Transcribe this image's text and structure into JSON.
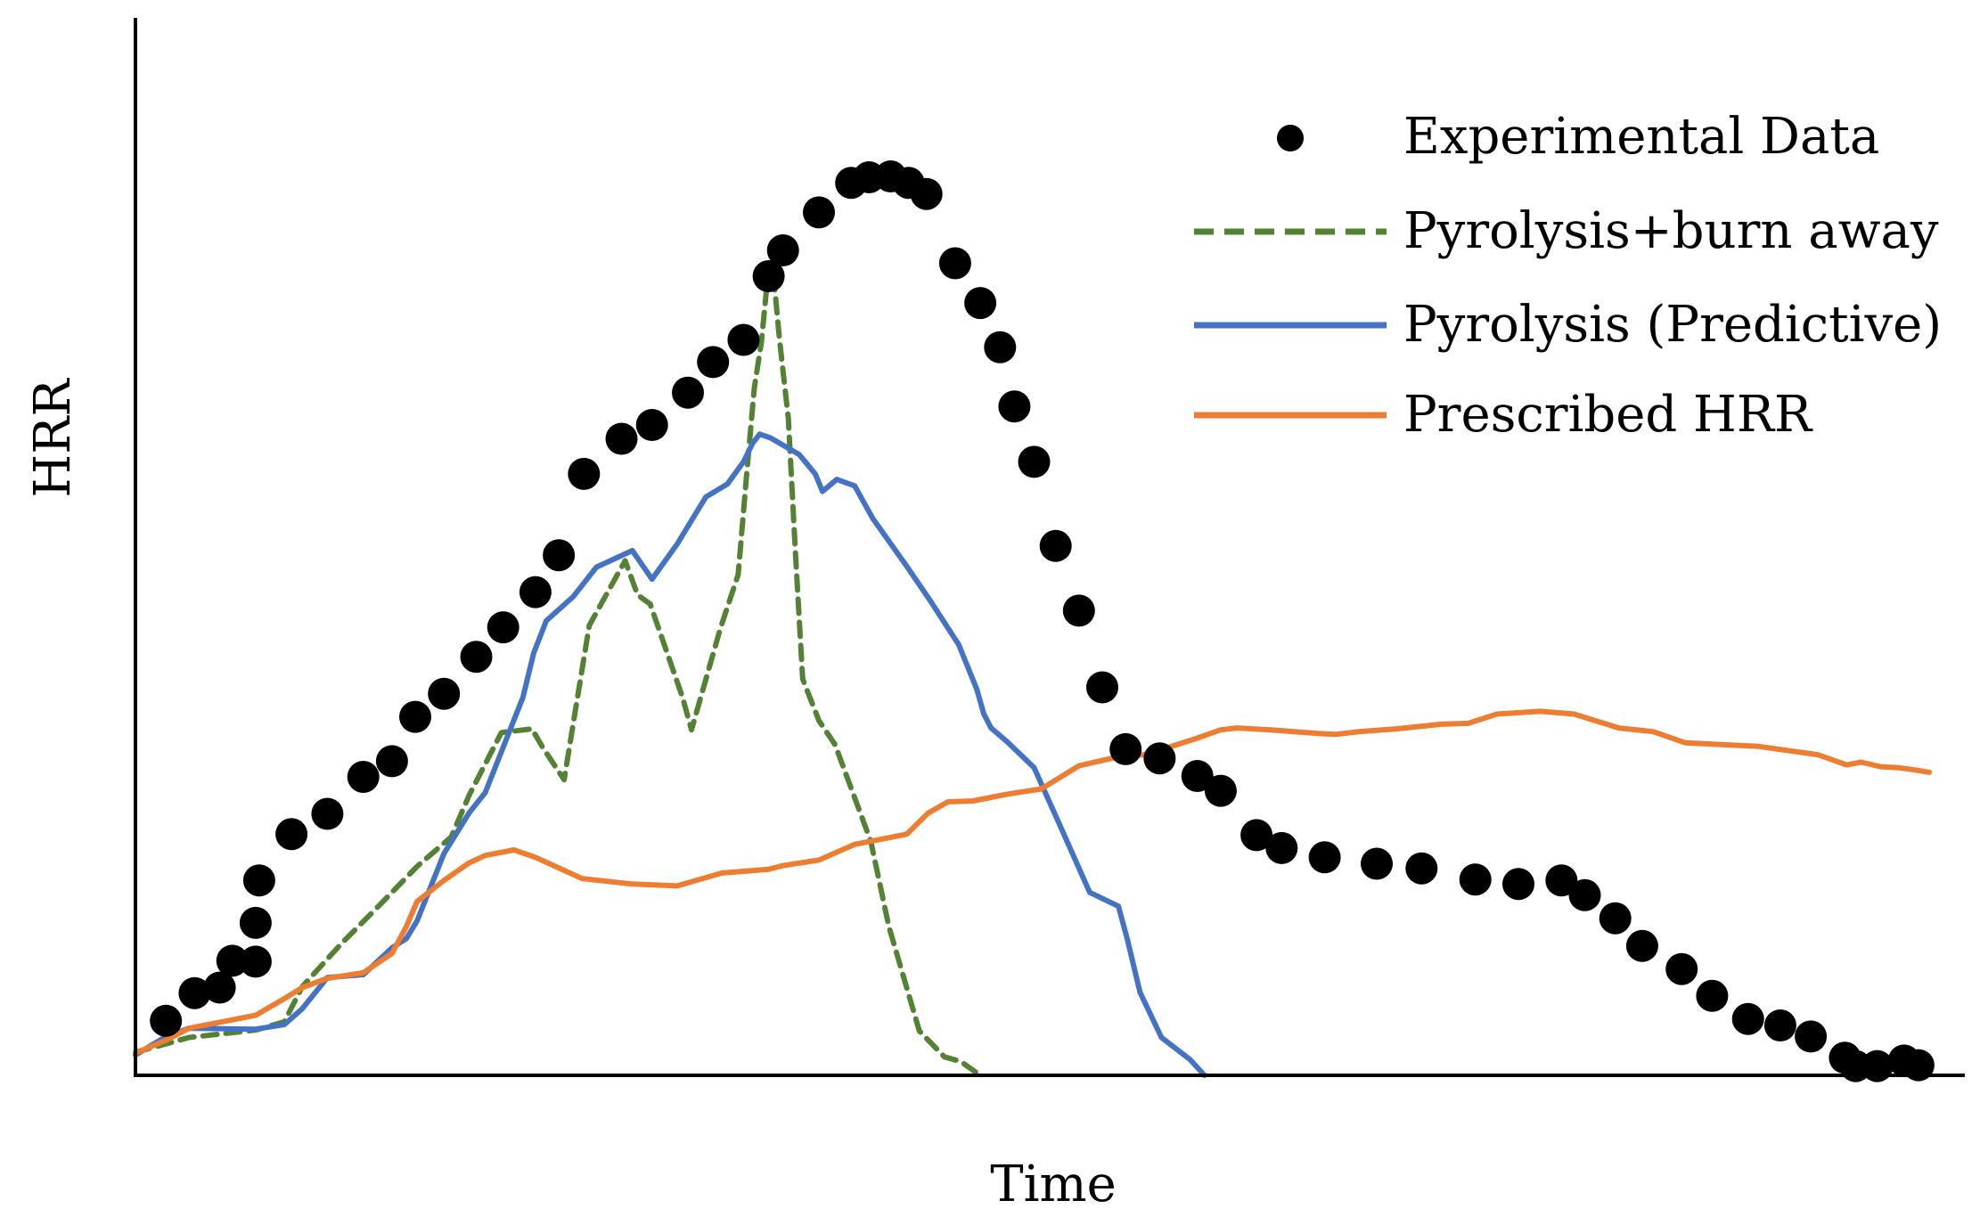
{
  "chart_data": {
    "type": "line",
    "title": "",
    "xlabel": "Time",
    "ylabel": "HRR",
    "xlim": [
      0,
      100
    ],
    "ylim": [
      0,
      100
    ],
    "ticks": "none",
    "grid": false,
    "legend_position": "top-right",
    "series": [
      {
        "name": "Experimental Data",
        "style": "markers",
        "color": "#000000",
        "x": [
          1.7,
          3.3,
          4.7,
          5.4,
          6.7,
          6.7,
          6.9,
          8.7,
          10.7,
          12.7,
          14.3,
          15.6,
          17.2,
          19.0,
          20.5,
          22.3,
          23.6,
          25.0,
          27.1,
          28.8,
          30.8,
          32.2,
          33.9,
          35.3,
          36.1,
          38.1,
          39.9,
          40.9,
          42.1,
          43.1,
          44.1,
          45.7,
          47.1,
          48.2,
          49.0,
          50.1,
          51.3,
          52.6,
          53.9,
          55.2,
          57.1,
          59.2,
          60.5,
          62.5,
          63.9,
          66.3,
          69.2,
          71.7,
          74.7,
          77.1,
          79.5,
          80.8,
          82.5,
          84.0,
          86.2,
          87.9,
          89.9,
          91.7,
          93.4,
          95.3,
          95.9,
          97.1,
          98.6,
          99.4
        ],
        "y": [
          5.9,
          8.9,
          9.5,
          12.4,
          12.3,
          16.5,
          21.1,
          26.1,
          28.3,
          32.3,
          34.0,
          38.8,
          41.3,
          45.3,
          48.5,
          52.3,
          56.3,
          65.1,
          68.9,
          70.4,
          73.9,
          77.2,
          79.6,
          86.5,
          89.3,
          93.4,
          96.6,
          97.2,
          97.3,
          96.6,
          95.4,
          87.9,
          83.6,
          78.8,
          72.4,
          66.4,
          57.3,
          50.3,
          42.0,
          35.3,
          34.3,
          32.4,
          30.8,
          26.0,
          24.6,
          23.6,
          22.9,
          22.4,
          21.2,
          20.7,
          21.1,
          19.5,
          17.0,
          14.0,
          11.5,
          8.6,
          6.1,
          5.4,
          4.2,
          1.9,
          1.0,
          1.0,
          1.6,
          1.1
        ],
        "values": [
          5.9,
          8.9,
          9.5,
          12.4,
          12.3,
          16.5,
          21.1,
          26.1,
          28.3,
          32.3,
          34.0,
          38.8,
          41.3,
          45.3,
          48.5,
          52.3,
          56.3,
          65.1,
          68.9,
          70.4,
          73.9,
          77.2,
          79.6,
          86.5,
          89.3,
          93.4,
          96.6,
          97.2,
          97.3,
          96.6,
          95.4,
          87.9,
          83.6,
          78.8,
          72.4,
          66.4,
          57.3,
          50.3,
          42.0,
          35.3,
          34.3,
          32.4,
          30.8,
          26.0,
          24.6,
          23.6,
          22.9,
          22.4,
          21.2,
          20.7,
          21.1,
          19.5,
          17.0,
          14.0,
          11.5,
          8.6,
          6.1,
          5.4,
          4.2,
          1.9,
          1.0,
          1.0,
          1.6,
          1.1
        ]
      },
      {
        "name": "Pyrolysis+burn away",
        "style": "dashed-line",
        "color": "#548235",
        "x": [
          0,
          3.0,
          6.7,
          8.3,
          9.3,
          11.5,
          13.4,
          15.7,
          17.6,
          18.6,
          20.4,
          22.1,
          22.7,
          23.9,
          24.5,
          25.3,
          27.3,
          28.0,
          28.7,
          30.5,
          31.0,
          32.6,
          33.6,
          34.1,
          34.5,
          34.9,
          35.2,
          35.6,
          35.9,
          36.4,
          36.8,
          37.2,
          38.1,
          39.0,
          41.0,
          42.0,
          43.7,
          45.1,
          46.0,
          47.1
        ],
        "y": [
          2.5,
          4.1,
          4.9,
          5.8,
          9.6,
          14.3,
          18.0,
          22.6,
          25.8,
          30.3,
          37.1,
          37.5,
          35.5,
          32.0,
          39.2,
          48.7,
          55.7,
          52.0,
          51.0,
          40.9,
          37.4,
          48.3,
          54.2,
          65.6,
          74.4,
          79.4,
          85.5,
          86.1,
          79.7,
          71.1,
          56.3,
          42.9,
          38.4,
          35.8,
          25.3,
          16.1,
          4.8,
          2.0,
          1.5,
          0.0
        ]
      },
      {
        "name": "Pyrolysis (Predictive)",
        "style": "line",
        "color": "#4472C4",
        "x": [
          0,
          1.7,
          3.0,
          6.7,
          8.3,
          9.3,
          10.7,
          12.7,
          14.3,
          15.1,
          15.7,
          17.2,
          18.6,
          19.5,
          21.6,
          22.2,
          22.9,
          24.4,
          25.7,
          27.7,
          28.8,
          30.2,
          31.8,
          33.0,
          33.9,
          34.4,
          34.8,
          35.4,
          37.0,
          37.9,
          38.3,
          39.1,
          40.1,
          41.1,
          43.0,
          44.3,
          45.9,
          46.9,
          47.3,
          47.7,
          48.6,
          50.1,
          51.6,
          53.2,
          54.8,
          55.3,
          56.0,
          57.2,
          58.8,
          59.6
        ],
        "y": [
          2.2,
          4.2,
          5.1,
          5.0,
          5.5,
          7.2,
          10.6,
          10.9,
          13.8,
          14.8,
          16.7,
          24.0,
          28.4,
          30.6,
          40.9,
          45.7,
          49.2,
          51.8,
          55.0,
          56.8,
          53.7,
          57.5,
          62.6,
          64.0,
          66.4,
          68.4,
          69.4,
          69.0,
          67.2,
          65.1,
          63.2,
          64.5,
          63.8,
          60.3,
          55.1,
          51.4,
          46.6,
          41.8,
          39.1,
          37.6,
          36.1,
          33.3,
          26.8,
          19.8,
          18.3,
          14.7,
          9.0,
          4.1,
          1.7,
          0.0
        ]
      },
      {
        "name": "Prescribed HRR",
        "style": "line",
        "color": "#ED7D31",
        "x": [
          0,
          1.7,
          3.0,
          6.7,
          8.3,
          9.3,
          10.7,
          12.7,
          14.3,
          15.1,
          15.7,
          17.2,
          18.6,
          19.5,
          21.1,
          22.3,
          24.9,
          27.7,
          30.2,
          32.7,
          35.3,
          36.1,
          38.1,
          40.1,
          43.0,
          44.2,
          45.3,
          46.7,
          48.5,
          50.5,
          52.6,
          54.6,
          56.2,
          57.1,
          59.2,
          60.5,
          61.4,
          63.3,
          65.9,
          66.9,
          68.2,
          70.3,
          72.8,
          74.3,
          75.9,
          78.3,
          80.2,
          82.7,
          84.6,
          86.4,
          88.4,
          90.5,
          93.8,
          95.4,
          96.2,
          97.3,
          98.3,
          99.4,
          100.0
        ],
        "y": [
          2.4,
          3.8,
          5.1,
          6.5,
          8.3,
          9.5,
          10.5,
          11.1,
          13.2,
          16.1,
          18.8,
          21.1,
          23.0,
          23.8,
          24.4,
          23.6,
          21.3,
          20.7,
          20.5,
          21.9,
          22.3,
          22.7,
          23.3,
          25.0,
          26.1,
          28.4,
          29.6,
          29.7,
          30.4,
          31.0,
          33.5,
          34.4,
          34.7,
          35.2,
          36.5,
          37.4,
          37.6,
          37.4,
          37.0,
          36.9,
          37.2,
          37.5,
          38.0,
          38.1,
          39.1,
          39.4,
          39.1,
          37.6,
          37.2,
          36.0,
          35.8,
          35.6,
          34.7,
          33.6,
          33.9,
          33.4,
          33.3,
          33.0,
          32.8
        ]
      }
    ],
    "legend": [
      {
        "label": "Experimental Data",
        "marker": "dot",
        "color": "#000000"
      },
      {
        "label": "Pyrolysis+burn away",
        "marker": "dashed",
        "color": "#548235"
      },
      {
        "label": "Pyrolysis (Predictive)",
        "marker": "solid",
        "color": "#4472C4"
      },
      {
        "label": "Prescribed HRR",
        "marker": "solid",
        "color": "#ED7D31"
      }
    ]
  }
}
